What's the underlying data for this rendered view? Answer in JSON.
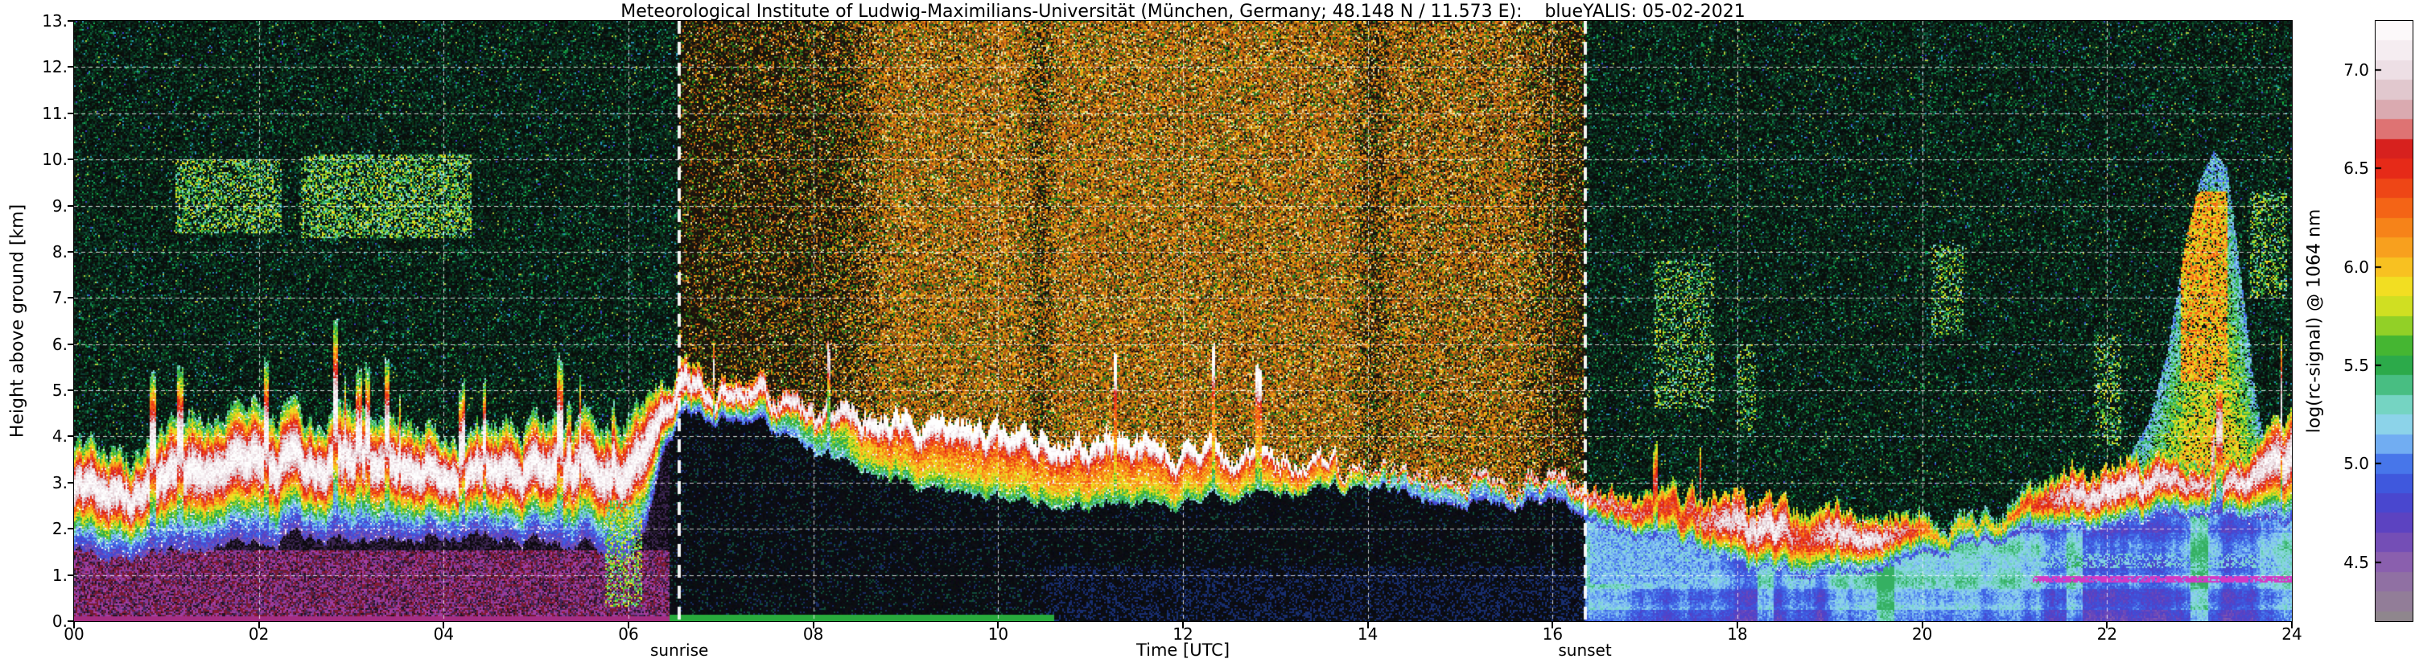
{
  "chart_data": {
    "type": "heatmap",
    "title": "Meteorological Institute of Ludwig-Maximilians-Universität (München, Germany; 48.148 N / 11.573 E):    blueYALIS: 05-02-2021",
    "institute": "Meteorological Institute of Ludwig-Maximilians-Universität",
    "location": "München, Germany",
    "coordinates": "48.148 N / 11.573 E",
    "instrument": "blueYALIS",
    "date": "05-02-2021",
    "xlabel": "Time [UTC]",
    "ylabel": "Height above ground [km]",
    "colorbar_label": "log(rc-signal) @ 1064 nm",
    "xlim": [
      0,
      24
    ],
    "ylim": [
      0,
      13
    ],
    "x_ticks": [
      "00",
      "02",
      "04",
      "06",
      "08",
      "10",
      "12",
      "14",
      "16",
      "18",
      "20",
      "22",
      "24"
    ],
    "y_ticks": [
      "0.",
      "1.",
      "2.",
      "3.",
      "4.",
      "5.",
      "6.",
      "7.",
      "8.",
      "9.",
      "10.",
      "11.",
      "12.",
      "13."
    ],
    "colorbar_ticks": [
      "7.0",
      "6.5",
      "6.0",
      "5.5",
      "5.0",
      "4.5"
    ],
    "colorbar_tick_values": [
      7.0,
      6.5,
      6.0,
      5.5,
      5.0,
      4.5
    ],
    "colorbar_range": [
      4.2,
      7.25
    ],
    "grid": {
      "style": "dashed",
      "color": "#ffffff",
      "x_step_hours": 2,
      "y_step_km": 1
    },
    "annotations": [
      {
        "label": "sunrise",
        "x_hours": 6.55,
        "line": "thick white dashed vertical"
      },
      {
        "label": "sunset",
        "x_hours": 16.35,
        "line": "thick white dashed vertical"
      }
    ],
    "colormap_stops": [
      [
        4.2,
        "#8f868d"
      ],
      [
        4.35,
        "#93799e"
      ],
      [
        4.5,
        "#8a5fae"
      ],
      [
        4.62,
        "#6f4ab8"
      ],
      [
        4.74,
        "#5340c6"
      ],
      [
        4.86,
        "#3f4fd8"
      ],
      [
        4.98,
        "#3f6ae8"
      ],
      [
        5.08,
        "#69a4f2"
      ],
      [
        5.18,
        "#8fd2f0"
      ],
      [
        5.28,
        "#7fd8cf"
      ],
      [
        5.38,
        "#4fc48f"
      ],
      [
        5.48,
        "#2aa84f"
      ],
      [
        5.58,
        "#35b135"
      ],
      [
        5.68,
        "#85cc28"
      ],
      [
        5.78,
        "#c8de22"
      ],
      [
        5.88,
        "#f0e422"
      ],
      [
        5.98,
        "#f8c822"
      ],
      [
        6.1,
        "#f8a01e"
      ],
      [
        6.22,
        "#f67d18"
      ],
      [
        6.35,
        "#f25415"
      ],
      [
        6.5,
        "#e62a18"
      ],
      [
        6.62,
        "#d41f1f"
      ],
      [
        6.72,
        "#e08888"
      ],
      [
        6.82,
        "#d9b3ba"
      ],
      [
        6.92,
        "#e3cdd3"
      ],
      [
        7.02,
        "#efe4e9"
      ],
      [
        7.25,
        "#ffffff"
      ]
    ],
    "aerosol_layer": {
      "description": "Strong aerosol/cloud layer (white saturated core ~log 7) near 2-5 km all day; elevated ~5 km band after sunrise descending to ~3 km by 14 UTC; low intense layers 1-2.5 km 18-20 UTC; renewed strong layer 21.5-24 UTC",
      "top_km": [
        [
          0,
          3.7
        ],
        [
          0.3,
          4.0
        ],
        [
          0.6,
          3.6
        ],
        [
          1,
          4.2
        ],
        [
          1.3,
          4.6
        ],
        [
          1.6,
          4.3
        ],
        [
          2,
          4.8
        ],
        [
          2.3,
          4.5
        ],
        [
          2.6,
          4.2
        ],
        [
          3,
          4.6
        ],
        [
          3.3,
          4.3
        ],
        [
          3.6,
          4.5
        ],
        [
          4,
          4.2
        ],
        [
          4.3,
          4.0
        ],
        [
          4.6,
          4.3
        ],
        [
          5,
          4.2
        ],
        [
          5.3,
          4.4
        ],
        [
          5.6,
          4.2
        ],
        [
          6,
          4.4
        ],
        [
          6.3,
          4.9
        ],
        [
          6.6,
          5.4
        ],
        [
          6.9,
          5.3
        ],
        [
          7.2,
          5.2
        ],
        [
          7.5,
          5.0
        ],
        [
          7.8,
          4.8
        ],
        [
          8.1,
          4.6
        ],
        [
          8.5,
          4.5
        ],
        [
          9,
          4.4
        ],
        [
          9.5,
          4.3
        ],
        [
          10,
          4.15
        ],
        [
          10.5,
          4.05
        ],
        [
          11,
          3.95
        ],
        [
          11.5,
          3.85
        ],
        [
          12,
          3.75
        ],
        [
          12.5,
          3.65
        ],
        [
          13,
          3.55
        ],
        [
          13.5,
          3.45
        ],
        [
          14,
          3.35
        ],
        [
          14.5,
          3.15
        ],
        [
          15,
          3.05
        ],
        [
          15.5,
          2.95
        ],
        [
          16,
          3.0
        ],
        [
          16.3,
          2.95
        ],
        [
          16.6,
          2.85
        ],
        [
          17,
          2.75
        ],
        [
          17.5,
          2.7
        ],
        [
          18,
          2.6
        ],
        [
          18.5,
          2.5
        ],
        [
          19,
          2.4
        ],
        [
          19.5,
          2.3
        ],
        [
          20,
          2.4
        ],
        [
          20.5,
          2.3
        ],
        [
          21,
          2.5
        ],
        [
          21.3,
          2.8
        ],
        [
          21.6,
          3.2
        ],
        [
          22,
          3.5
        ],
        [
          22.4,
          3.6
        ],
        [
          22.8,
          3.5
        ],
        [
          23.2,
          3.4
        ],
        [
          23.6,
          3.8
        ],
        [
          23.8,
          4.3
        ],
        [
          24,
          4.5
        ]
      ],
      "bottom_km": [
        [
          0,
          1.5
        ],
        [
          0.5,
          1.4
        ],
        [
          1,
          1.5
        ],
        [
          1.5,
          1.6
        ],
        [
          2,
          1.7
        ],
        [
          2.5,
          1.8
        ],
        [
          3,
          1.7
        ],
        [
          3.5,
          1.8
        ],
        [
          4,
          1.9
        ],
        [
          4.5,
          1.8
        ],
        [
          5,
          1.7
        ],
        [
          5.5,
          1.6
        ],
        [
          6,
          1.4
        ],
        [
          6.2,
          2.0
        ],
        [
          6.4,
          3.8
        ],
        [
          6.6,
          4.4
        ],
        [
          7,
          4.4
        ],
        [
          7.5,
          4.2
        ],
        [
          8,
          3.7
        ],
        [
          8.5,
          3.3
        ],
        [
          9,
          3.0
        ],
        [
          9.5,
          2.8
        ],
        [
          10,
          2.65
        ],
        [
          10.5,
          2.55
        ],
        [
          11,
          2.5
        ],
        [
          11.5,
          2.5
        ],
        [
          12,
          2.55
        ],
        [
          12.5,
          2.65
        ],
        [
          13,
          2.75
        ],
        [
          13.5,
          2.85
        ],
        [
          14,
          2.95
        ],
        [
          14.3,
          2.85
        ],
        [
          14.6,
          2.6
        ],
        [
          15,
          2.5
        ],
        [
          15.5,
          2.5
        ],
        [
          16,
          2.55
        ],
        [
          16.3,
          2.3
        ],
        [
          16.6,
          2.0
        ],
        [
          17,
          1.8
        ],
        [
          17.5,
          1.6
        ],
        [
          18,
          1.2
        ],
        [
          18.5,
          1.0
        ],
        [
          19,
          1.0
        ],
        [
          19.5,
          1.1
        ],
        [
          20,
          1.5
        ],
        [
          20.5,
          1.7
        ],
        [
          21,
          1.8
        ],
        [
          21.5,
          1.9
        ],
        [
          22,
          2.1
        ],
        [
          22.5,
          2.2
        ],
        [
          23,
          2.3
        ],
        [
          23.5,
          2.2
        ],
        [
          24,
          2.1
        ]
      ],
      "core_rel_position": [
        [
          0,
          0.6
        ],
        [
          6,
          0.6
        ],
        [
          6.6,
          0.6
        ],
        [
          7.5,
          0.7
        ],
        [
          8,
          0.85
        ],
        [
          9,
          0.92
        ],
        [
          14,
          0.93
        ],
        [
          16,
          0.85
        ],
        [
          16.5,
          0.7
        ],
        [
          17,
          0.6
        ],
        [
          24,
          0.6
        ]
      ],
      "core_width": [
        [
          0,
          0.3
        ],
        [
          6,
          0.3
        ],
        [
          6.6,
          0.35
        ],
        [
          8,
          0.25
        ],
        [
          9,
          0.22
        ],
        [
          14,
          0.2
        ],
        [
          16,
          0.25
        ],
        [
          17,
          0.35
        ],
        [
          18,
          0.4
        ],
        [
          20,
          0.3
        ],
        [
          21,
          0.25
        ],
        [
          21.5,
          0.35
        ],
        [
          22,
          0.35
        ],
        [
          23,
          0.3
        ],
        [
          24,
          0.35
        ]
      ],
      "core_value": [
        [
          0,
          7.2
        ],
        [
          6.4,
          7.2
        ],
        [
          6.8,
          7.25
        ],
        [
          8,
          7.15
        ],
        [
          13.8,
          7.1
        ],
        [
          14.5,
          7.0
        ],
        [
          16.3,
          7.0
        ],
        [
          16.8,
          6.7
        ],
        [
          17.3,
          6.5
        ],
        [
          17.8,
          6.9
        ],
        [
          18.1,
          7.05
        ],
        [
          18.45,
          7.1
        ],
        [
          18.7,
          6.5
        ],
        [
          19.0,
          7.0
        ],
        [
          19.45,
          7.1
        ],
        [
          19.8,
          6.7
        ],
        [
          20.2,
          6.0
        ],
        [
          20.7,
          5.9
        ],
        [
          21.2,
          6.5
        ],
        [
          21.6,
          7.0
        ],
        [
          22.0,
          7.15
        ],
        [
          22.5,
          7.1
        ],
        [
          22.9,
          6.9
        ],
        [
          23.3,
          7.0
        ],
        [
          23.7,
          7.1
        ],
        [
          24,
          7.15
        ]
      ],
      "edge_value": [
        [
          0,
          5.0
        ],
        [
          6,
          5.0
        ],
        [
          7,
          5.1
        ],
        [
          8.5,
          5.6
        ],
        [
          13.5,
          5.6
        ],
        [
          14.5,
          5.2
        ],
        [
          16,
          5.1
        ],
        [
          17,
          5.2
        ],
        [
          24,
          5.1
        ]
      ],
      "mid_boost": [
        [
          8.2,
          0
        ],
        [
          8.8,
          0.55
        ],
        [
          13.6,
          0.55
        ],
        [
          14.3,
          0
        ]
      ]
    },
    "plume": {
      "description": "Tall lofted plume ~22:20-23:40 UTC reaching ~10 km (green/yellow with red core 22:50-23:15 near 6-9 km)",
      "top_km": [
        [
          22.25,
          3.6
        ],
        [
          22.45,
          4.3
        ],
        [
          22.65,
          5.8
        ],
        [
          22.85,
          8.2
        ],
        [
          23.0,
          9.5
        ],
        [
          23.15,
          10.2
        ],
        [
          23.3,
          9.8
        ],
        [
          23.45,
          7.5
        ],
        [
          23.6,
          5.0
        ],
        [
          23.7,
          3.9
        ]
      ]
    },
    "cloud_patches": [
      {
        "t0": 1.1,
        "t1": 2.25,
        "h0": 8.4,
        "h1": 10.0,
        "density": 0.45
      },
      {
        "t0": 2.45,
        "t1": 4.3,
        "h0": 8.3,
        "h1": 10.1,
        "density": 0.5
      },
      {
        "t0": 17.1,
        "t1": 17.75,
        "h0": 4.6,
        "h1": 7.8,
        "density": 0.3
      },
      {
        "t0": 18.0,
        "t1": 18.2,
        "h0": 4.0,
        "h1": 6.0,
        "density": 0.25
      },
      {
        "t0": 20.1,
        "t1": 20.45,
        "h0": 6.2,
        "h1": 8.2,
        "density": 0.3
      },
      {
        "t0": 21.85,
        "t1": 22.15,
        "h0": 3.8,
        "h1": 6.2,
        "density": 0.3
      },
      {
        "t0": 23.55,
        "t1": 23.95,
        "h0": 7.0,
        "h1": 9.3,
        "density": 0.35
      },
      {
        "t0": 5.75,
        "t1": 6.15,
        "h0": 0.3,
        "h1": 2.6,
        "density": 0.5
      }
    ],
    "background": {
      "night": "dark green-black speckle noise",
      "day": "solar background noise: orange/brown speckle between sunrise and sunset, strongest ~09-14 UTC",
      "day_noise_intensity": [
        [
          6.55,
          0.2
        ],
        [
          7.2,
          0.3
        ],
        [
          8.3,
          0.4
        ],
        [
          8.85,
          1.0
        ],
        [
          10.25,
          1.0
        ],
        [
          10.45,
          0.55
        ],
        [
          10.65,
          1.0
        ],
        [
          13.8,
          1.0
        ],
        [
          14.05,
          0.5
        ],
        [
          14.3,
          0.9
        ],
        [
          15.6,
          0.9
        ],
        [
          15.95,
          0.5
        ],
        [
          16.35,
          0.2
        ]
      ]
    },
    "low_level": {
      "pre_dawn_region": "purple/maroon speckle below ~1.5 km before sunrise",
      "night_blue_region": "stratified blue/cyan layers below ~2 km after sunset",
      "magenta_line": {
        "t0": 21.2,
        "t1": 24,
        "h0": 0.82,
        "h1": 0.97
      },
      "cyan_band": {
        "t0": 16.4,
        "t1": 17.7,
        "h0": 0.8,
        "h1": 2.0
      },
      "teal_band": {
        "t0": 19.8,
        "t1": 24,
        "h0": 1.15,
        "h1": 1.45
      },
      "green_surface_strip": {
        "t0": 6.4,
        "t1": 10.6,
        "h0": 0,
        "h1": 0.14
      },
      "bright_columns_utc": [
        18.3,
        19.6,
        21.65,
        23.0
      ]
    }
  }
}
